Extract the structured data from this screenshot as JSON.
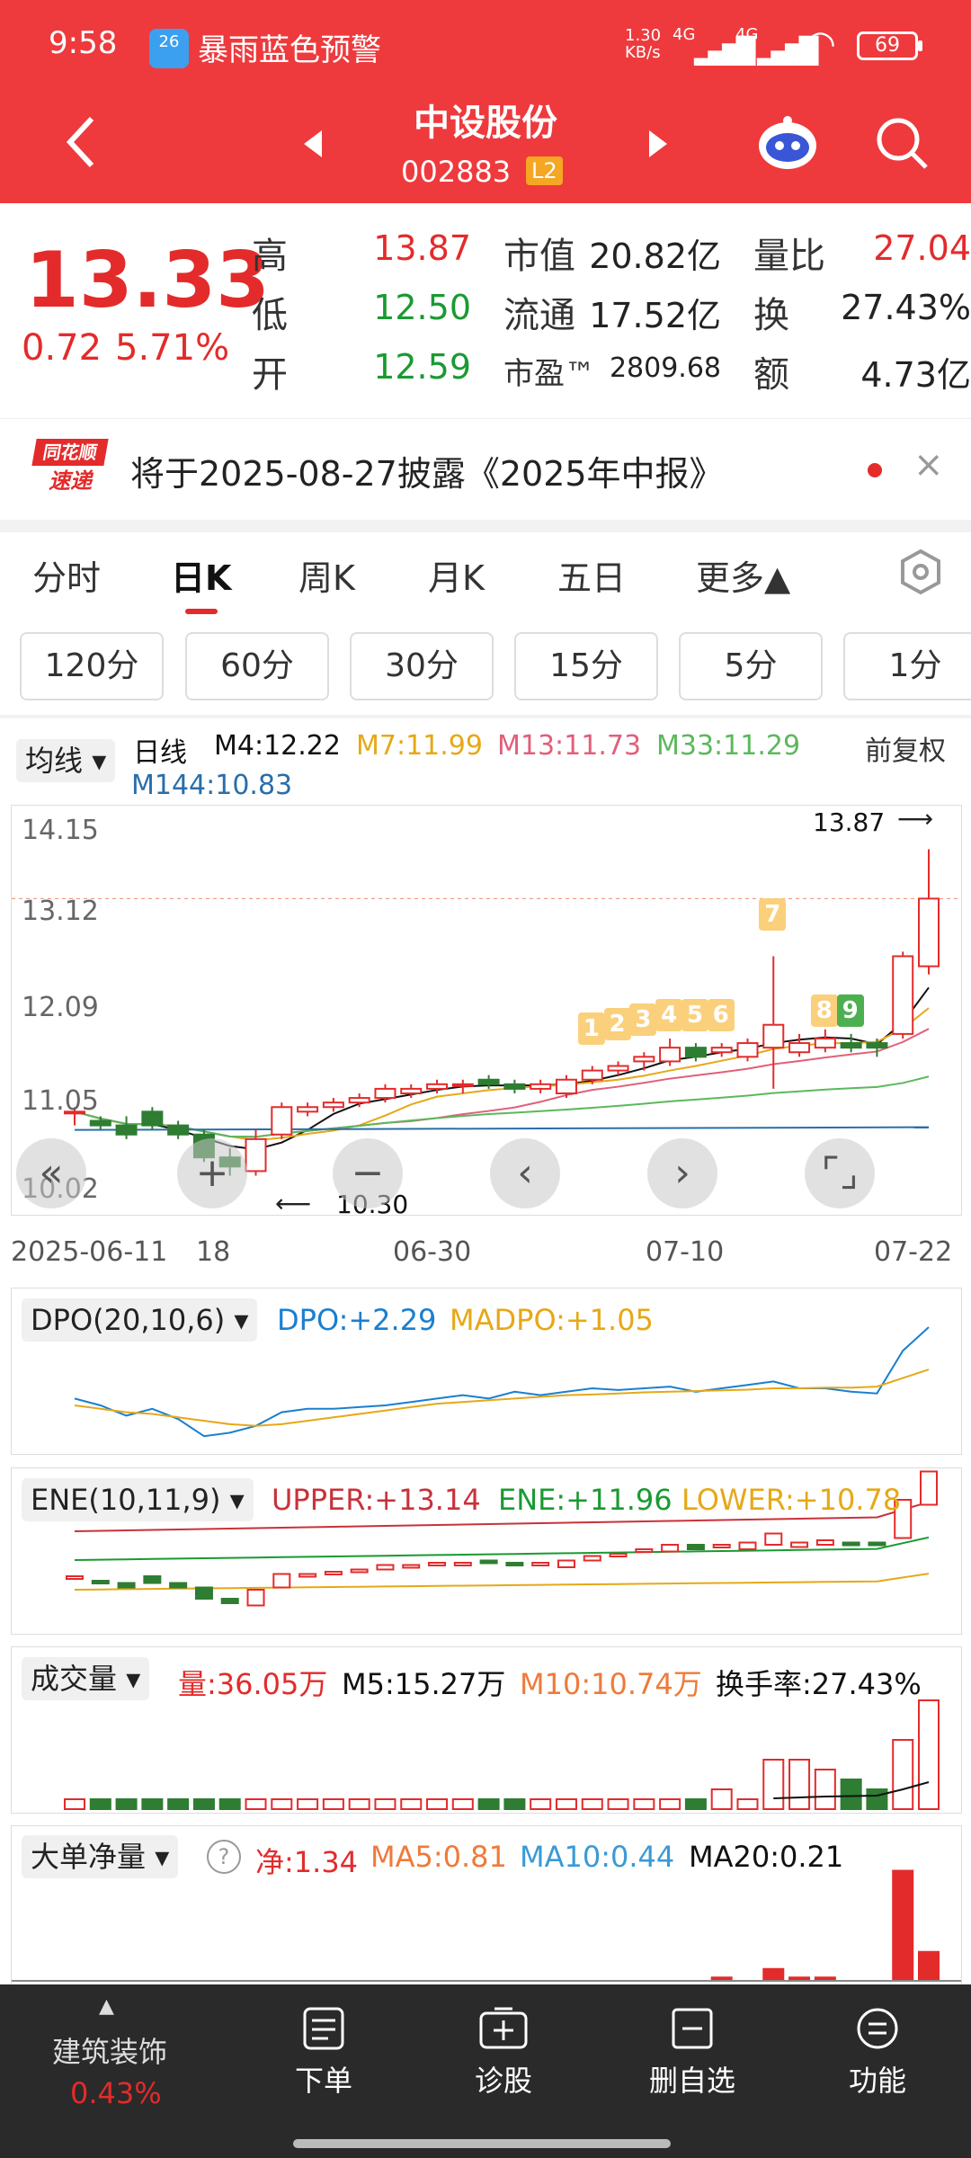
{
  "status": {
    "time": "9:58",
    "app_badge": "26",
    "alert": "暴雨蓝色预警",
    "net_speed": "1.30\nKB/s",
    "net1": "4G",
    "net2": "4G",
    "battery": "69"
  },
  "header": {
    "title": "中设股份",
    "code": "002883",
    "level": "L2"
  },
  "quote": {
    "price": "13.33",
    "change": "0.72",
    "pct": "5.71%",
    "high_label": "高",
    "high": "13.87",
    "low_label": "低",
    "low": "12.50",
    "open_label": "开",
    "open": "12.59",
    "mv_label": "市值",
    "mv": "20.82亿",
    "float_label": "流通",
    "float": "17.52亿",
    "pe_label": "市盈™",
    "pe": "2809.68",
    "vr_label": "量比",
    "vr": "27.04",
    "turn_label": "换",
    "turn": "27.43%",
    "amt_label": "额",
    "amt": "4.73亿"
  },
  "notice": {
    "logo1": "同花顺",
    "logo2": "速递",
    "text": "将于2025-08-27披露《2025年中报》"
  },
  "tabs": [
    "分时",
    "日K",
    "周K",
    "月K",
    "五日",
    "更多▲"
  ],
  "period_tabs": [
    "120分",
    "60分",
    "30分",
    "15分",
    "5分",
    "1分"
  ],
  "ma_bar": {
    "selector": "均线",
    "type": "日线",
    "m4": "M4:12.22",
    "m7": "M7:11.99",
    "m13": "M13:11.73",
    "m33": "M33:11.29",
    "m144": "M144:10.83",
    "adjust": "前复权"
  },
  "chart_data": {
    "type": "candlestick",
    "y_ticks": [
      "14.15",
      "13.12",
      "12.09",
      "11.05",
      "10.02"
    ],
    "x_ticks": [
      "2025-06-11",
      "18",
      "06-30",
      "07-10",
      "07-22"
    ],
    "high_mark": "13.87",
    "low_mark": "10.30",
    "badges": [
      "1",
      "2",
      "3",
      "4",
      "5",
      "6",
      "7",
      "8",
      "9"
    ],
    "candles": [
      [
        11.0,
        11.0,
        10.85,
        11.05
      ],
      [
        10.9,
        10.85,
        10.8,
        10.95
      ],
      [
        10.85,
        10.75,
        10.7,
        10.95
      ],
      [
        11.0,
        10.85,
        10.8,
        11.05
      ],
      [
        10.85,
        10.75,
        10.7,
        10.9
      ],
      [
        10.75,
        10.5,
        10.45,
        10.8
      ],
      [
        10.5,
        10.4,
        10.3,
        10.6
      ],
      [
        10.35,
        10.7,
        10.3,
        10.8
      ],
      [
        10.75,
        11.05,
        10.7,
        11.1
      ],
      [
        11.0,
        11.05,
        10.95,
        11.1
      ],
      [
        11.05,
        11.1,
        11.0,
        11.15
      ],
      [
        11.1,
        11.15,
        11.05,
        11.2
      ],
      [
        11.15,
        11.25,
        11.1,
        11.3
      ],
      [
        11.2,
        11.25,
        11.15,
        11.3
      ],
      [
        11.25,
        11.3,
        11.2,
        11.35
      ],
      [
        11.3,
        11.3,
        11.2,
        11.35
      ],
      [
        11.35,
        11.3,
        11.25,
        11.4
      ],
      [
        11.3,
        11.25,
        11.2,
        11.35
      ],
      [
        11.25,
        11.3,
        11.2,
        11.35
      ],
      [
        11.2,
        11.35,
        11.15,
        11.4
      ],
      [
        11.35,
        11.45,
        11.3,
        11.5
      ],
      [
        11.45,
        11.5,
        11.4,
        11.55
      ],
      [
        11.55,
        11.6,
        11.45,
        11.65
      ],
      [
        11.55,
        11.7,
        11.5,
        11.8
      ],
      [
        11.7,
        11.6,
        11.55,
        11.75
      ],
      [
        11.65,
        11.7,
        11.6,
        11.75
      ],
      [
        11.6,
        11.75,
        11.55,
        11.8
      ],
      [
        11.7,
        11.95,
        11.25,
        12.7
      ],
      [
        11.65,
        11.75,
        11.6,
        11.85
      ],
      [
        11.7,
        11.8,
        11.65,
        11.9
      ],
      [
        11.75,
        11.7,
        11.65,
        11.85
      ],
      [
        11.75,
        11.7,
        11.6,
        11.8
      ],
      [
        11.85,
        12.7,
        11.8,
        12.75
      ],
      [
        12.59,
        13.33,
        12.5,
        13.87
      ]
    ],
    "dpo": {
      "label": "DPO(20,10,6)",
      "dpo": "DPO:+2.29",
      "madpo": "MADPO:+1.05"
    },
    "ene": {
      "label": "ENE(10,11,9)",
      "upper": "UPPER:+13.14",
      "ene": "ENE:+11.96",
      "lower": "LOWER:+10.78"
    },
    "volume": {
      "label": "成交量",
      "vol": "量:36.05万",
      "m5": "M5:15.27万",
      "m10": "M10:10.74万",
      "turn": "换手率:27.43%",
      "values": [
        1,
        1,
        1,
        1,
        1,
        1,
        1,
        1,
        1,
        1,
        1,
        1,
        1,
        1,
        1,
        1,
        1,
        1,
        1,
        1,
        1,
        1,
        1,
        1,
        1,
        2,
        1,
        5,
        5,
        4,
        3,
        2,
        7,
        11
      ]
    },
    "bigorder": {
      "label": "大单净量",
      "net": "净:1.34",
      "ma5": "MA5:0.81",
      "ma10": "MA10:0.44",
      "ma20": "MA20:0.21"
    }
  },
  "bottom": {
    "sector": "建筑装饰",
    "sector_pct": "0.43%",
    "btn1": "下单",
    "btn2": "诊股",
    "btn3": "删自选",
    "btn4": "功能"
  }
}
